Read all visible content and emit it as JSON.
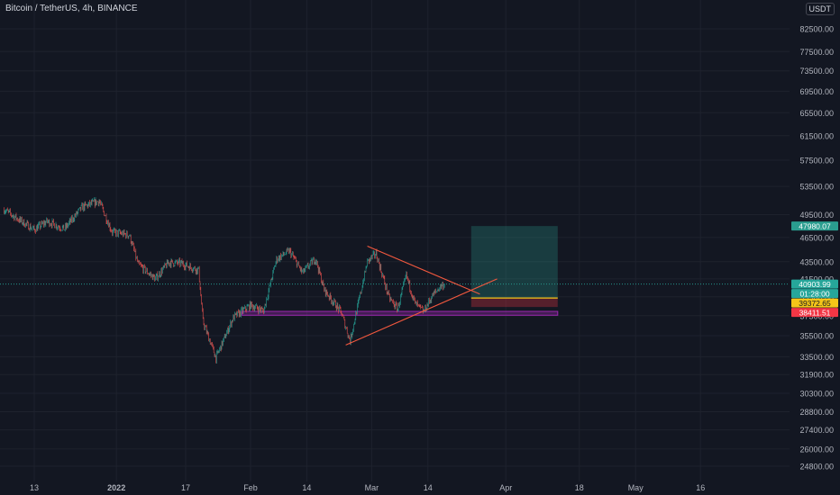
{
  "title": "Bitcoin / TetherUS, 4h, BINANCE",
  "currency": "USDT",
  "axis_top_label": "8",
  "colors": {
    "background": "#131722",
    "grid": "#1e222d",
    "axis_text": "#b2b5be",
    "up": "#26a69a",
    "down": "#ef5350",
    "trendline": "#f2583e",
    "zone": "#9c27b0",
    "target": "#2a9d8f",
    "stop": "#f23645",
    "entry_line": "#f5c518"
  },
  "chart_data": {
    "type": "candlestick",
    "symbol": "BTCUSDT",
    "interval": "4h",
    "exchange": "BINANCE",
    "y_axis": {
      "scale": "log",
      "ticks": [
        24800,
        26000,
        27400,
        28800,
        30300,
        31900,
        33500,
        35500,
        37500,
        39500,
        41500,
        43500,
        46500,
        49500,
        53500,
        57500,
        61500,
        65500,
        69500,
        73500,
        77500,
        82500
      ],
      "tick_labels": [
        "24800.00",
        "26000.00",
        "27400.00",
        "28800.00",
        "30300.00",
        "31900.00",
        "33500.00",
        "35500.00",
        "37500.00",
        "39500.00",
        "41500.00",
        "43500.00",
        "46500.00",
        "49500.00",
        "53500.00",
        "57500.00",
        "61500.00",
        "65500.00",
        "69500.00",
        "73500.00",
        "77500.00",
        "82500.00"
      ]
    },
    "x_axis": {
      "labels": [
        "13",
        "2022",
        "17",
        "Feb",
        "14",
        "Mar",
        "14",
        "Apr",
        "18",
        "May",
        "16"
      ],
      "label_dates": [
        "2021-12-13",
        "2022-01-01",
        "2022-01-17",
        "2022-02-01",
        "2022-02-14",
        "2022-03-01",
        "2022-03-14",
        "2022-04-01",
        "2022-04-18",
        "2022-05-01",
        "2022-05-16"
      ]
    },
    "price_path": [
      {
        "date": "2021-12-06",
        "price": 50200
      },
      {
        "date": "2021-12-09",
        "price": 49000
      },
      {
        "date": "2021-12-13",
        "price": 47500
      },
      {
        "date": "2021-12-16",
        "price": 48600
      },
      {
        "date": "2021-12-20",
        "price": 47600
      },
      {
        "date": "2021-12-24",
        "price": 50500
      },
      {
        "date": "2021-12-28",
        "price": 51400
      },
      {
        "date": "2021-12-31",
        "price": 47200
      },
      {
        "date": "2022-01-04",
        "price": 46800
      },
      {
        "date": "2022-01-06",
        "price": 43200
      },
      {
        "date": "2022-01-10",
        "price": 41500
      },
      {
        "date": "2022-01-13",
        "price": 43400
      },
      {
        "date": "2022-01-16",
        "price": 43300
      },
      {
        "date": "2022-01-20",
        "price": 42500
      },
      {
        "date": "2022-01-21",
        "price": 36900
      },
      {
        "date": "2022-01-24",
        "price": 33400
      },
      {
        "date": "2022-01-28",
        "price": 37300
      },
      {
        "date": "2022-02-01",
        "price": 38600
      },
      {
        "date": "2022-02-04",
        "price": 38000
      },
      {
        "date": "2022-02-07",
        "price": 43800
      },
      {
        "date": "2022-02-10",
        "price": 44800
      },
      {
        "date": "2022-02-13",
        "price": 42200
      },
      {
        "date": "2022-02-16",
        "price": 43900
      },
      {
        "date": "2022-02-18",
        "price": 40300
      },
      {
        "date": "2022-02-22",
        "price": 37800
      },
      {
        "date": "2022-02-24",
        "price": 35000
      },
      {
        "date": "2022-02-26",
        "price": 39000
      },
      {
        "date": "2022-02-28",
        "price": 43500
      },
      {
        "date": "2022-03-02",
        "price": 44500
      },
      {
        "date": "2022-03-05",
        "price": 39400
      },
      {
        "date": "2022-03-07",
        "price": 38200
      },
      {
        "date": "2022-03-09",
        "price": 41900
      },
      {
        "date": "2022-03-11",
        "price": 38800
      },
      {
        "date": "2022-03-13",
        "price": 37900
      },
      {
        "date": "2022-03-15",
        "price": 39600
      },
      {
        "date": "2022-03-17",
        "price": 40700
      },
      {
        "date": "2022-03-18",
        "price": 40903.99
      }
    ],
    "trendlines": [
      {
        "from": {
          "date": "2022-02-28",
          "price": 45400
        },
        "to": {
          "date": "2022-03-26",
          "price": 39800
        }
      },
      {
        "from": {
          "date": "2022-02-23",
          "price": 34600
        },
        "to": {
          "date": "2022-03-30",
          "price": 41500
        }
      }
    ],
    "support_zone": {
      "from_date": "2022-01-30",
      "to_date": "2022-04-13",
      "price_low": 37550,
      "price_high": 37950
    },
    "position": {
      "from_date": "2022-03-24",
      "to_date": "2022-04-13",
      "entry": 39372.65,
      "target": 47980.07,
      "stop": 38411.51
    },
    "price_labels": [
      {
        "text": "47980.07",
        "price": 47980.07,
        "color": "#2a9d8f"
      },
      {
        "text": "40903.99",
        "price": 40903.99,
        "color": "#26a69a"
      },
      {
        "text": "01:28:00",
        "price": 40400,
        "color": "#26a69a"
      },
      {
        "text": "39372.65",
        "price": 39372.65,
        "color": "#f5c518"
      },
      {
        "text": "38411.51",
        "price": 38411.51,
        "color": "#f23645"
      }
    ]
  }
}
